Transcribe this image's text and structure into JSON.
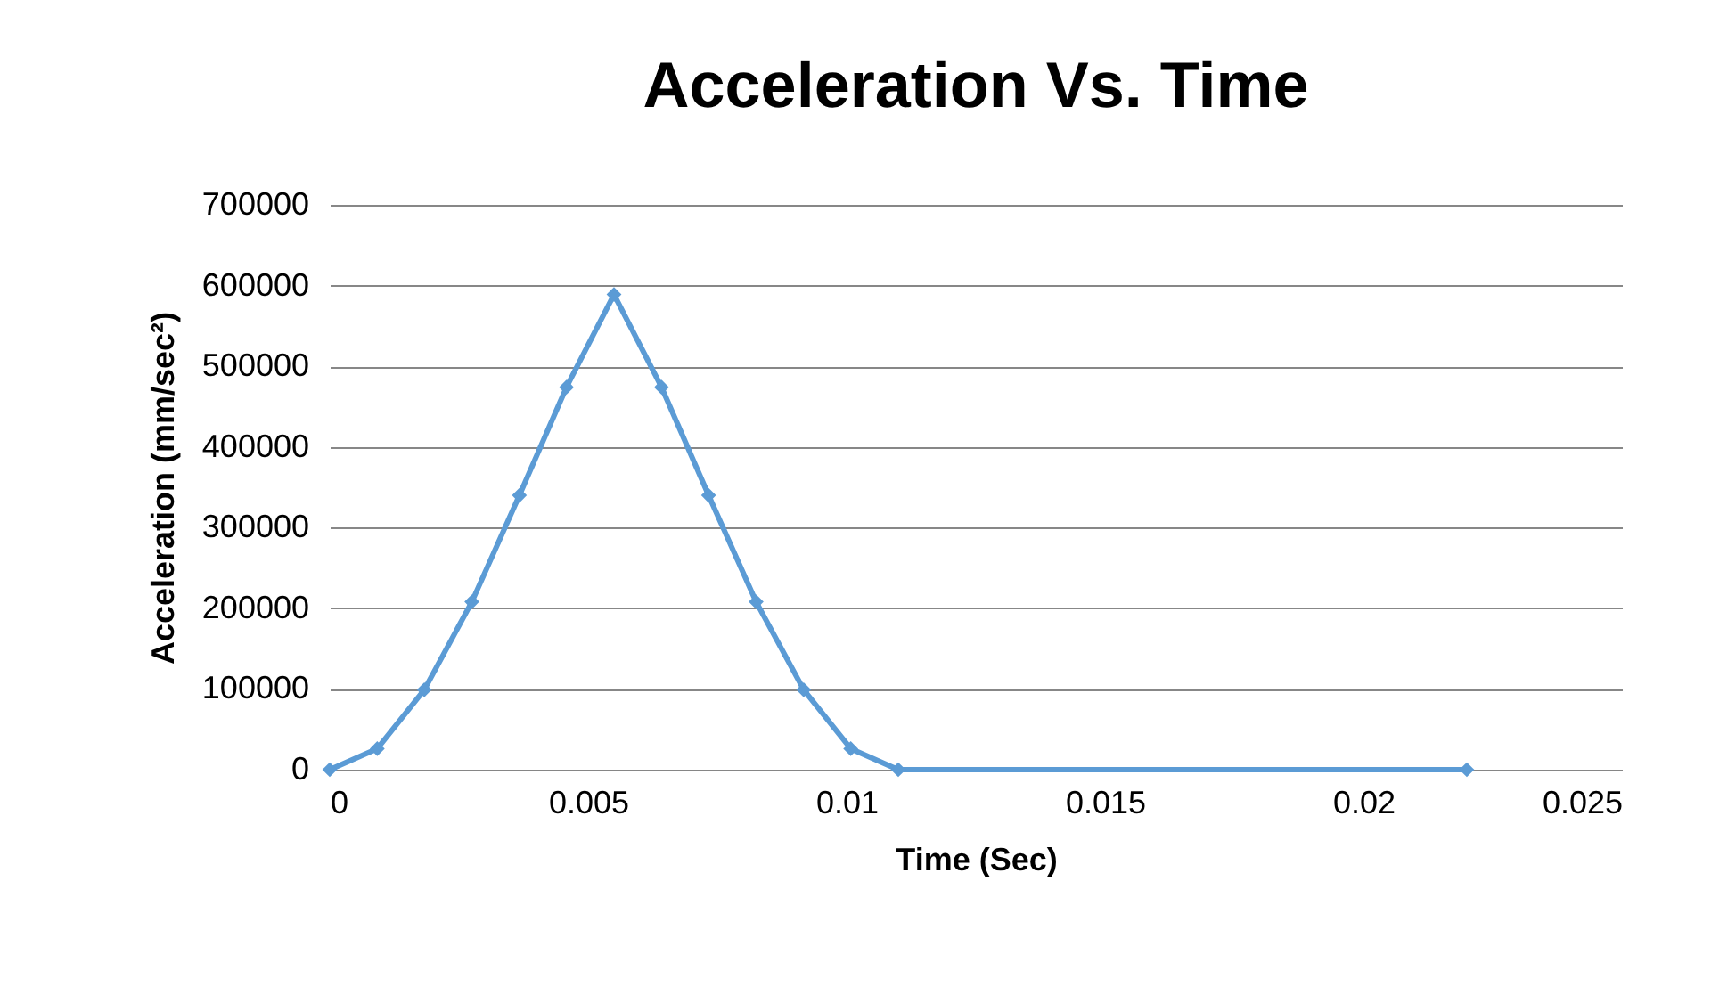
{
  "chart_data": {
    "type": "line",
    "title": "Acceleration Vs. Time",
    "xlabel": "Time (Sec)",
    "ylabel": "Acceleration (mm/sec²)",
    "x": [
      0,
      0.00092,
      0.00183,
      0.00275,
      0.00367,
      0.00458,
      0.0055,
      0.00642,
      0.00733,
      0.00825,
      0.00917,
      0.01008,
      0.011,
      0.022
    ],
    "series": [
      {
        "color": "#5b9bd5",
        "values": [
          0,
          26000,
          99000,
          208000,
          340000,
          474000,
          589000,
          474000,
          340000,
          208000,
          99000,
          26000,
          0,
          0
        ]
      }
    ],
    "xlim": [
      0,
      0.025
    ],
    "xticks": [
      0,
      0.005,
      0.01,
      0.015,
      0.02,
      0.025
    ],
    "ylim": [
      0,
      700000
    ],
    "yticks": [
      0,
      100000,
      200000,
      300000,
      400000,
      500000,
      600000,
      700000
    ],
    "grid": "y",
    "marker": "diamond",
    "line_style": "solid"
  }
}
